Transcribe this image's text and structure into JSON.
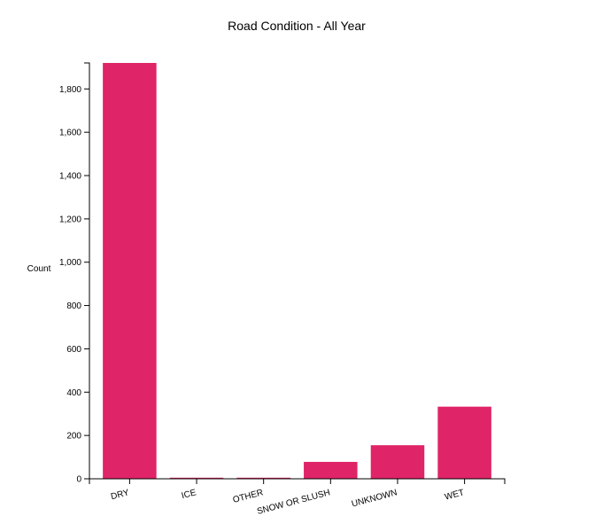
{
  "chart_data": {
    "type": "bar",
    "title": "Road Condition - All Year",
    "xlabel": "",
    "ylabel": "Count",
    "categories": [
      "DRY",
      "ICE",
      "OTHER",
      "SNOW OR SLUSH",
      "UNKNOWN",
      "WET"
    ],
    "values": [
      1920,
      5,
      5,
      78,
      155,
      333
    ],
    "ylim": [
      0,
      1920
    ],
    "yticks": [
      {
        "value": 0,
        "label": "0"
      },
      {
        "value": 200,
        "label": "200"
      },
      {
        "value": 400,
        "label": "400"
      },
      {
        "value": 600,
        "label": "600"
      },
      {
        "value": 800,
        "label": "800"
      },
      {
        "value": 1000,
        "label": "1,000"
      },
      {
        "value": 1200,
        "label": "1,200"
      },
      {
        "value": 1400,
        "label": "1,400"
      },
      {
        "value": 1600,
        "label": "1,600"
      },
      {
        "value": 1800,
        "label": "1,800"
      }
    ],
    "bar_color": "#df2468",
    "axis_color": "#000000",
    "grid": false
  }
}
